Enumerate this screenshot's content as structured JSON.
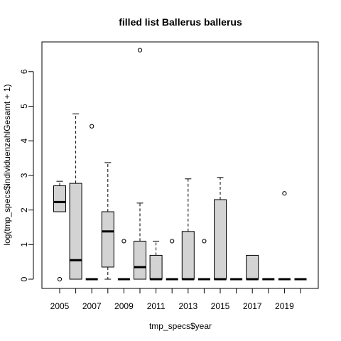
{
  "chart_data": {
    "type": "boxplot",
    "title": "filled list Ballerus ballerus",
    "xlabel": "tmp_specs$year",
    "ylabel": "log(tmp_specs$individuenzahlGesamt + 1)",
    "ylim": [
      0,
      6.8
    ],
    "yticks": [
      0,
      1,
      2,
      3,
      4,
      5,
      6
    ],
    "x_tick_labels": [
      "2005",
      "2007",
      "2009",
      "2011",
      "2013",
      "2015",
      "2017",
      "2019"
    ],
    "categories": [
      "2005",
      "2006",
      "2007",
      "2008",
      "2009",
      "2010",
      "2011",
      "2012",
      "2013",
      "2014",
      "2015",
      "2016",
      "2017",
      "2018",
      "2019",
      "2020"
    ],
    "grid": false,
    "box_fill": "#d3d3d3",
    "boxes": [
      {
        "year": "2005",
        "whisker_low": 1.95,
        "q1": 1.95,
        "median": 2.23,
        "q3": 2.7,
        "whisker_high": 2.83,
        "outliers": [
          0
        ]
      },
      {
        "year": "2006",
        "whisker_low": 0,
        "q1": 0,
        "median": 0.55,
        "q3": 2.77,
        "whisker_high": 4.78,
        "outliers": []
      },
      {
        "year": "2007",
        "whisker_low": 0,
        "q1": 0,
        "median": 0,
        "q3": 0,
        "whisker_high": 0,
        "outliers": [
          4.42
        ]
      },
      {
        "year": "2008",
        "whisker_low": 0,
        "q1": 0.35,
        "median": 1.38,
        "q3": 1.95,
        "whisker_high": 3.37,
        "outliers": []
      },
      {
        "year": "2009",
        "whisker_low": 0,
        "q1": 0,
        "median": 0,
        "q3": 0,
        "whisker_high": 0,
        "outliers": [
          1.1
        ]
      },
      {
        "year": "2010",
        "whisker_low": 0,
        "q1": 0,
        "median": 0.35,
        "q3": 1.1,
        "whisker_high": 2.2,
        "outliers": [
          6.62
        ]
      },
      {
        "year": "2011",
        "whisker_low": 0,
        "q1": 0,
        "median": 0,
        "q3": 0.69,
        "whisker_high": 1.1,
        "outliers": []
      },
      {
        "year": "2012",
        "whisker_low": 0,
        "q1": 0,
        "median": 0,
        "q3": 0,
        "whisker_high": 0,
        "outliers": [
          1.1
        ]
      },
      {
        "year": "2013",
        "whisker_low": 0,
        "q1": 0,
        "median": 0,
        "q3": 1.38,
        "whisker_high": 2.9,
        "outliers": []
      },
      {
        "year": "2014",
        "whisker_low": 0,
        "q1": 0,
        "median": 0,
        "q3": 0,
        "whisker_high": 0,
        "outliers": [
          1.1
        ]
      },
      {
        "year": "2015",
        "whisker_low": 0,
        "q1": 0,
        "median": 0,
        "q3": 2.3,
        "whisker_high": 2.94,
        "outliers": []
      },
      {
        "year": "2016",
        "whisker_low": 0,
        "q1": 0,
        "median": 0,
        "q3": 0,
        "whisker_high": 0,
        "outliers": []
      },
      {
        "year": "2017",
        "whisker_low": 0,
        "q1": 0,
        "median": 0,
        "q3": 0.69,
        "whisker_high": 0.69,
        "outliers": []
      },
      {
        "year": "2018",
        "whisker_low": 0,
        "q1": 0,
        "median": 0,
        "q3": 0,
        "whisker_high": 0,
        "outliers": []
      },
      {
        "year": "2019",
        "whisker_low": 0,
        "q1": 0,
        "median": 0,
        "q3": 0,
        "whisker_high": 0,
        "outliers": [
          2.48
        ]
      },
      {
        "year": "2020",
        "whisker_low": 0,
        "q1": 0,
        "median": 0,
        "q3": 0,
        "whisker_high": 0,
        "outliers": []
      }
    ]
  }
}
